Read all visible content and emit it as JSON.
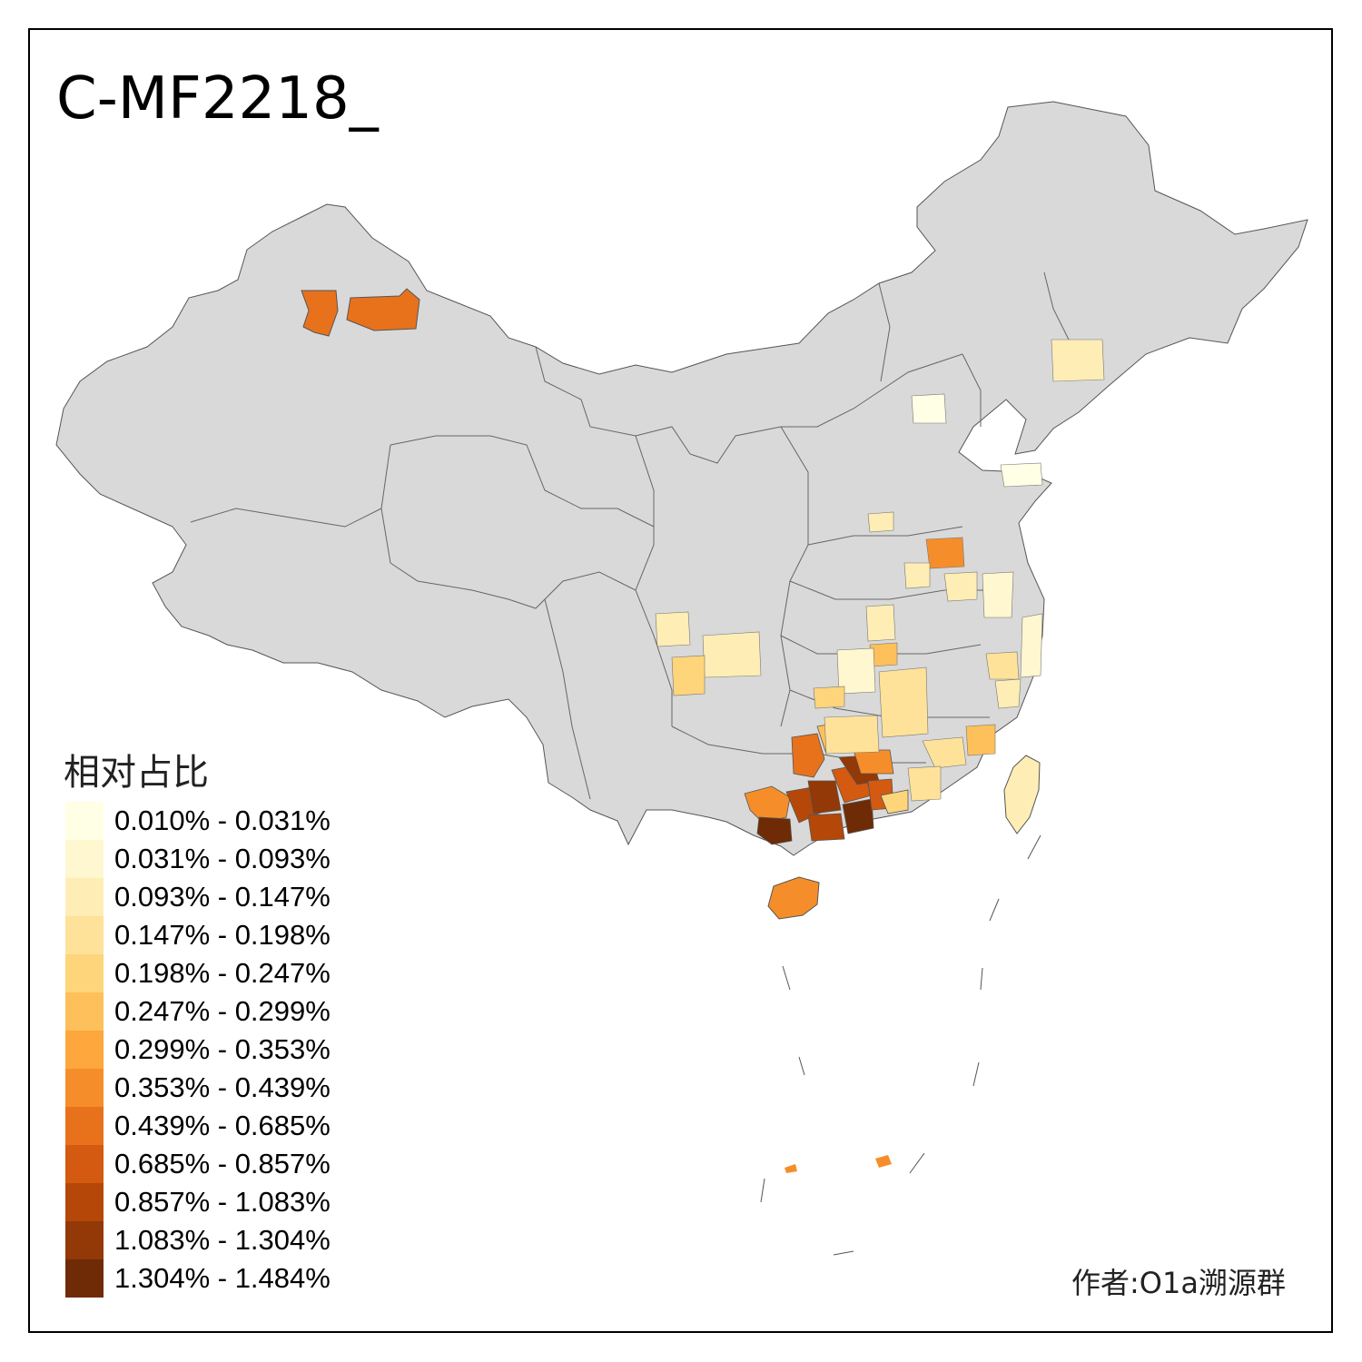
{
  "map": {
    "title": "C-MF2218_",
    "legend": {
      "title": "相对占比",
      "items": [
        {
          "label": "0.010% - 0.031%",
          "color": "#FFFFE6"
        },
        {
          "label": "0.031% - 0.093%",
          "color": "#FFF7CF"
        },
        {
          "label": "0.093% - 0.147%",
          "color": "#FEEDB5"
        },
        {
          "label": "0.147% - 0.198%",
          "color": "#FEE29A"
        },
        {
          "label": "0.198% - 0.247%",
          "color": "#FED57B"
        },
        {
          "label": "0.247% - 0.299%",
          "color": "#FEC05A"
        },
        {
          "label": "0.299% - 0.353%",
          "color": "#FDA73C"
        },
        {
          "label": "0.353% - 0.439%",
          "color": "#F58E2A"
        },
        {
          "label": "0.439% - 0.685%",
          "color": "#E8721C"
        },
        {
          "label": "0.685% - 0.857%",
          "color": "#D35A10"
        },
        {
          "label": "0.857% - 1.083%",
          "color": "#B54808"
        },
        {
          "label": "1.083% - 1.304%",
          "color": "#933807"
        },
        {
          "label": "1.304% - 1.484%",
          "color": "#6F2B06"
        }
      ]
    },
    "credit": "作者:O1a溯源群",
    "base_color": "#D9D9D9"
  }
}
